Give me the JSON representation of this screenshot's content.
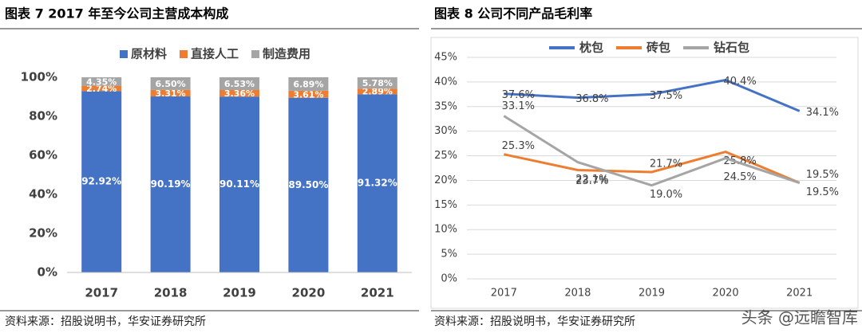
{
  "chart_data": [
    {
      "type": "stacked-bar",
      "title": "图表 7 2017 年至今公司主营成本构成",
      "source": "资料来源：招股说明书，华安证券研究所",
      "categories": [
        "2017",
        "2018",
        "2019",
        "2020",
        "2021"
      ],
      "series": [
        {
          "name": "原材料",
          "color": "#4472c4",
          "values": [
            92.92,
            90.19,
            90.11,
            89.5,
            91.32
          ],
          "value_labels": [
            "92.92%",
            "90.19%",
            "90.11%",
            "89.50%",
            "91.32%"
          ]
        },
        {
          "name": "直接人工",
          "color": "#ed7d31",
          "values": [
            2.74,
            3.31,
            3.36,
            3.61,
            2.89
          ],
          "value_labels": [
            "2.74%",
            "3.31%",
            "3.36%",
            "3.61%",
            "2.89%"
          ]
        },
        {
          "name": "制造费用",
          "color": "#a5a5a5",
          "values": [
            4.35,
            6.5,
            6.53,
            6.89,
            5.78
          ],
          "value_labels": [
            "4.35%",
            "6.50%",
            "6.53%",
            "6.89%",
            "5.78%"
          ]
        }
      ],
      "ylim": [
        0,
        100
      ],
      "yticks": [
        {
          "value": 0,
          "label": "0%"
        },
        {
          "value": 20,
          "label": "20%"
        },
        {
          "value": 40,
          "label": "40%"
        },
        {
          "value": 60,
          "label": "60%"
        },
        {
          "value": 80,
          "label": "80%"
        },
        {
          "value": 100,
          "label": "100%"
        }
      ],
      "grid": false,
      "legend": "top"
    },
    {
      "type": "line",
      "title": "图表 8 公司不同产品毛利率",
      "source": "资料来源：招股说明书，华安证券研究所",
      "categories": [
        "2017",
        "2018",
        "2019",
        "2020",
        "2021"
      ],
      "series": [
        {
          "name": "枕包",
          "color": "#4472c4",
          "values": [
            37.6,
            36.8,
            37.5,
            40.4,
            34.1
          ],
          "value_labels": [
            "37.6%",
            "36.8%",
            "37.5%",
            "40.4%",
            "34.1%"
          ]
        },
        {
          "name": "砖包",
          "color": "#ed7d31",
          "values": [
            25.3,
            22.1,
            21.7,
            25.8,
            19.5
          ],
          "value_labels": [
            "25.3%",
            "22.1%",
            "21.7%",
            "25.8%",
            "19.5%"
          ]
        },
        {
          "name": "钻石包",
          "color": "#a5a5a5",
          "values": [
            33.1,
            23.7,
            19.0,
            24.5,
            19.5
          ],
          "value_labels": [
            "33.1%",
            "23.7%",
            "19.0%",
            "24.5%",
            "19.5%"
          ]
        }
      ],
      "ylim": [
        0,
        45
      ],
      "yticks": [
        {
          "value": 0,
          "label": "0%"
        },
        {
          "value": 5,
          "label": "5%"
        },
        {
          "value": 10,
          "label": "10%"
        },
        {
          "value": 15,
          "label": "15%"
        },
        {
          "value": 20,
          "label": "20%"
        },
        {
          "value": 25,
          "label": "25%"
        },
        {
          "value": 30,
          "label": "30%"
        },
        {
          "value": 35,
          "label": "35%"
        },
        {
          "value": 40,
          "label": "40%"
        },
        {
          "value": 45,
          "label": "45%"
        }
      ],
      "grid": true,
      "legend": "top"
    }
  ],
  "watermark": "头条 @远瞻智库"
}
